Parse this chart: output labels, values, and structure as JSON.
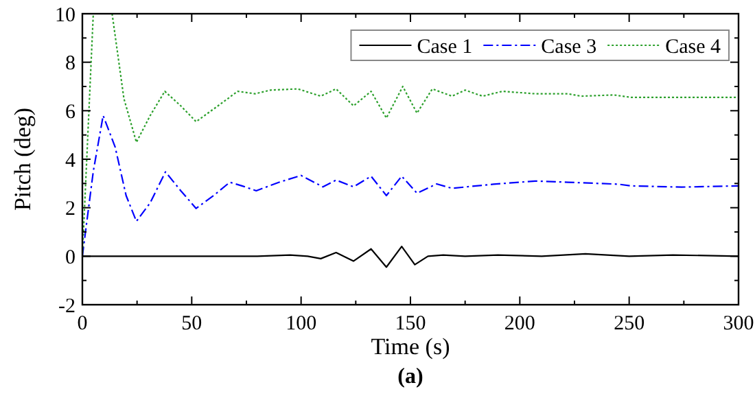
{
  "chart_data": {
    "type": "line",
    "xlabel": "Time (s)",
    "ylabel": "Pitch (deg)",
    "annotations": [
      "(a)"
    ],
    "xlim": [
      0,
      300
    ],
    "ylim": [
      -2,
      10
    ],
    "xticks": [
      0,
      {
        "value": 25,
        "label": null
      },
      50,
      {
        "value": 75,
        "label": null
      },
      100,
      {
        "value": 125,
        "label": null
      },
      150,
      {
        "value": 175,
        "label": null
      },
      200,
      {
        "value": 225,
        "label": null
      },
      250,
      {
        "value": 275,
        "label": null
      },
      300
    ],
    "yticks": [
      {
        "value": -2,
        "label": "-2"
      },
      {
        "value": -1,
        "label": null
      },
      0,
      {
        "value": 1,
        "label": null
      },
      2,
      {
        "value": 3,
        "label": null
      },
      4,
      {
        "value": 5,
        "label": null
      },
      6,
      {
        "value": 7,
        "label": null
      },
      8,
      {
        "value": 9,
        "label": null
      },
      10
    ],
    "grid": false,
    "legend": "top right",
    "marker": "none",
    "series": [
      {
        "name": "Case 1",
        "color": "#000000",
        "line_style": "solid",
        "x": [
          0,
          20,
          40,
          60,
          80,
          95,
          103,
          109,
          116,
          124,
          132,
          139,
          146,
          152,
          158,
          165,
          175,
          190,
          210,
          230,
          250,
          270,
          300
        ],
        "values": [
          0,
          0,
          0,
          0,
          0,
          0.05,
          0,
          -0.1,
          0.15,
          -0.2,
          0.3,
          -0.45,
          0.4,
          -0.35,
          0,
          0.05,
          0,
          0.05,
          0,
          0.1,
          0,
          0.05,
          0
        ]
      },
      {
        "name": "Case 3",
        "color": "#0000ff",
        "line_style": "dashed",
        "x": [
          0,
          5,
          9.5,
          15,
          20,
          24.7,
          31,
          38,
          45,
          52,
          60,
          67.4,
          73,
          79.5,
          90,
          100,
          110,
          116,
          124,
          132,
          139,
          146,
          153,
          162,
          169,
          188,
          207,
          222,
          245,
          251,
          274,
          300
        ],
        "values": [
          0,
          3.5,
          5.8,
          4.5,
          2.5,
          1.44,
          2.2,
          3.48,
          2.7,
          1.97,
          2.5,
          3.05,
          2.9,
          2.7,
          3.05,
          3.33,
          2.86,
          3.14,
          2.86,
          3.3,
          2.5,
          3.3,
          2.6,
          2.98,
          2.8,
          2.97,
          3.1,
          3.05,
          2.97,
          2.9,
          2.85,
          2.9
        ]
      },
      {
        "name": "Case 4",
        "color": "#2ca02c",
        "line_style": "dotted",
        "x": [
          0,
          3,
          5,
          9.5,
          13.6,
          19,
          24.7,
          31,
          37.7,
          45,
          52,
          62,
          71,
          79,
          86,
          98.5,
          109,
          116,
          124,
          132,
          139,
          146.5,
          153,
          160,
          169,
          175,
          183,
          192,
          207,
          222,
          228,
          243,
          251,
          275,
          300
        ],
        "values": [
          0,
          6,
          10,
          null,
          10,
          6.5,
          4.7,
          5.8,
          6.8,
          6.2,
          5.55,
          6.2,
          6.8,
          6.7,
          6.85,
          6.9,
          6.6,
          6.9,
          6.2,
          6.8,
          5.7,
          7.0,
          5.9,
          6.9,
          6.6,
          6.85,
          6.6,
          6.8,
          6.7,
          6.7,
          6.6,
          6.65,
          6.55,
          6.55,
          6.55
        ]
      }
    ]
  }
}
